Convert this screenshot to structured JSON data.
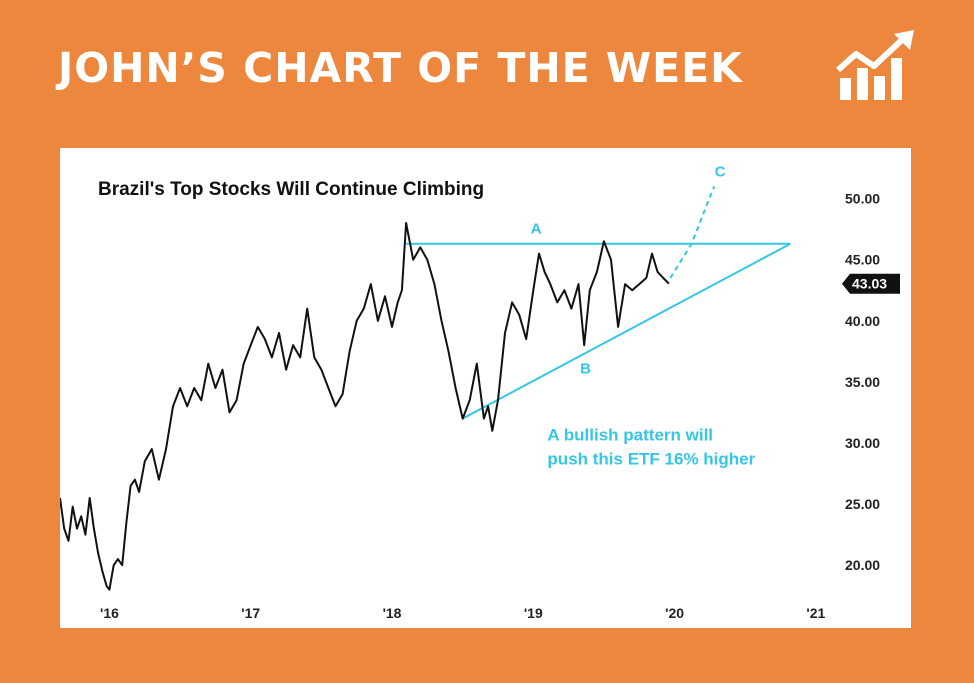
{
  "banner": {
    "title": "JOHN’S CHART OF THE WEEK",
    "icon": "rising-chart-icon",
    "background_color": "#ED873E",
    "text_color": "#FFFFFF"
  },
  "chart_data": {
    "type": "line",
    "title": "Brazil's Top Stocks Will Continue Climbing",
    "xlabel": "",
    "ylabel": "",
    "x_ticks": [
      "'16",
      "'17",
      "'18",
      "'19",
      "'20",
      "'21"
    ],
    "x_range": [
      2015.65,
      2021.1
    ],
    "y_ticks": [
      "20.00",
      "25.00",
      "30.00",
      "35.00",
      "40.00",
      "45.00",
      "50.00"
    ],
    "ylim": [
      16.5,
      52.5
    ],
    "y_axis_position": "right",
    "grid": false,
    "legend": "none",
    "line_color": "#111111",
    "annotation_color": "#35C6E6",
    "last_value": 43.03,
    "last_value_label": "43.03",
    "series": [
      {
        "x": [
          2015.65,
          2015.68,
          2015.71,
          2015.74,
          2015.77,
          2015.8,
          2015.83,
          2015.86,
          2015.89,
          2015.92,
          2015.95,
          2015.98,
          2016.0,
          2016.03,
          2016.06,
          2016.09,
          2016.12,
          2016.15,
          2016.18,
          2016.21,
          2016.25,
          2016.3,
          2016.35,
          2016.4,
          2016.45,
          2016.5,
          2016.55,
          2016.6,
          2016.65,
          2016.7,
          2016.75,
          2016.8,
          2016.85,
          2016.9,
          2016.95,
          2017.0,
          2017.05,
          2017.1,
          2017.15,
          2017.2,
          2017.25,
          2017.3,
          2017.35,
          2017.4,
          2017.45,
          2017.5,
          2017.55,
          2017.6,
          2017.65,
          2017.7,
          2017.75,
          2017.8,
          2017.85,
          2017.9,
          2017.95,
          2018.0,
          2018.04,
          2018.07,
          2018.1,
          2018.15,
          2018.2,
          2018.25,
          2018.3,
          2018.35,
          2018.4,
          2018.45,
          2018.5,
          2018.55,
          2018.6,
          2018.65,
          2018.68,
          2018.71,
          2018.75,
          2018.8,
          2018.85,
          2018.9,
          2018.95,
          2019.0,
          2019.04,
          2019.08,
          2019.12,
          2019.17,
          2019.22,
          2019.27,
          2019.32,
          2019.36,
          2019.4,
          2019.45,
          2019.5,
          2019.55,
          2019.6,
          2019.65,
          2019.7,
          2019.75,
          2019.8,
          2019.84,
          2019.88,
          2019.92,
          2019.96
        ],
        "y": [
          25.5,
          23.0,
          22.0,
          24.8,
          23.0,
          24.0,
          22.5,
          25.5,
          23.0,
          21.0,
          19.5,
          18.3,
          18.0,
          20.0,
          20.5,
          20.0,
          23.5,
          26.5,
          27.0,
          26.0,
          28.5,
          29.5,
          27.0,
          29.5,
          33.0,
          34.5,
          33.0,
          34.5,
          33.5,
          36.5,
          34.5,
          36.0,
          32.5,
          33.5,
          36.5,
          38.0,
          39.5,
          38.5,
          37.0,
          39.0,
          36.0,
          38.0,
          37.0,
          41.0,
          37.0,
          36.0,
          34.5,
          33.0,
          34.0,
          37.5,
          40.0,
          41.0,
          43.0,
          40.0,
          42.0,
          39.5,
          41.5,
          42.5,
          48.0,
          45.0,
          46.0,
          45.0,
          43.0,
          40.0,
          37.5,
          34.5,
          32.0,
          33.5,
          36.5,
          32.0,
          33.0,
          31.0,
          33.5,
          39.0,
          41.5,
          40.5,
          38.5,
          42.5,
          45.5,
          44.0,
          43.0,
          41.5,
          42.5,
          41.0,
          43.0,
          38.0,
          42.5,
          44.0,
          46.5,
          45.0,
          39.5,
          43.0,
          42.5,
          43.0,
          43.5,
          45.5,
          44.0,
          43.5,
          43.03
        ]
      }
    ],
    "annotations": {
      "point_a_label": "A",
      "point_b_label": "B",
      "point_c_label": "C",
      "resistance_line": {
        "x": [
          2018.1,
          2020.82
        ],
        "y": [
          46.3,
          46.3
        ]
      },
      "support_line": {
        "x": [
          2018.5,
          2020.82
        ],
        "y": [
          32.0,
          46.3
        ]
      },
      "projection": {
        "x": [
          2019.97,
          2020.12,
          2020.28
        ],
        "y": [
          43.5,
          46.3,
          51.0
        ]
      },
      "a_at": {
        "x": 2019.02,
        "y": 46.8
      },
      "b_at": {
        "x": 2019.37,
        "y": 36.0
      },
      "c_at": {
        "x": 2020.28,
        "y": 51.8
      },
      "note_lines": [
        "A bullish pattern will",
        "push this ETF 16% higher"
      ],
      "note_at": {
        "x": 2019.1,
        "y": 30.2
      }
    }
  }
}
